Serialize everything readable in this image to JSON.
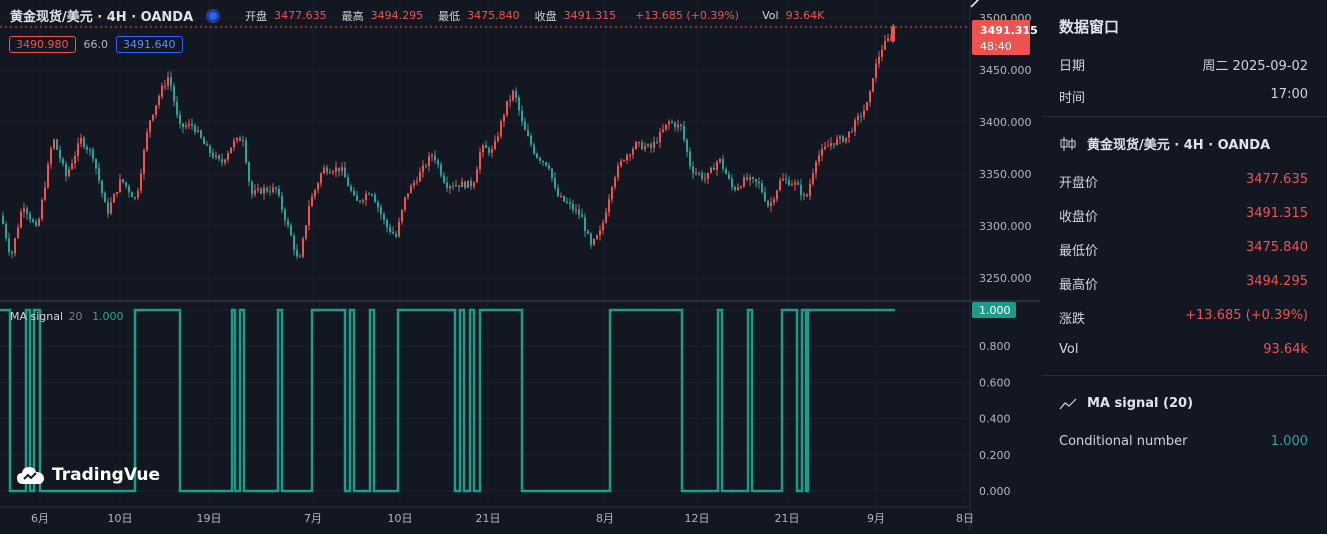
{
  "legend": {
    "symbol": "黄金现货/美元 · 4H · OANDA",
    "open_label": "开盘",
    "open": "3477.635",
    "high_label": "最高",
    "high": "3494.295",
    "low_label": "最低",
    "low": "3475.840",
    "close_label": "收盘",
    "close": "3491.315",
    "change": "+13.685 (+0.39%)",
    "vol_label": "Vol",
    "vol": "93.64K"
  },
  "quote": {
    "bid": "3490.980",
    "spread": "66.0",
    "ask": "3491.640"
  },
  "price_badge": {
    "price": "3491.315",
    "countdown": "48:40"
  },
  "price_axis": [
    "3500.000",
    "3450.000",
    "3400.000",
    "3350.000",
    "3300.000",
    "3250.000"
  ],
  "signal_axis": [
    "1.000",
    "0.800",
    "0.600",
    "0.400",
    "0.200",
    "0.000"
  ],
  "signal_badge": "1.000",
  "time_axis": [
    "6月",
    "10日",
    "19日",
    "7月",
    "10日",
    "21日",
    "8月",
    "12日",
    "21日",
    "9月",
    "8日"
  ],
  "ma_legend": {
    "name": "MA signal",
    "period": "20",
    "value": "1.000"
  },
  "logo": "TradingVue",
  "colors": {
    "up": "#ef5350",
    "down": "#26a69a",
    "signal": "#1a9e8a",
    "background": "#131722"
  },
  "panel": {
    "title": "数据窗口",
    "date_label": "日期",
    "date": "周二 2025-09-02",
    "time_label": "时间",
    "time": "17:00",
    "series_title": "黄金现货/美元 · 4H · OANDA",
    "open_label": "开盘价",
    "open": "3477.635",
    "close_label": "收盘价",
    "close": "3491.315",
    "low_label": "最低价",
    "low": "3475.840",
    "high_label": "最高价",
    "high": "3494.295",
    "change_label": "涨跌",
    "change": "+13.685 (+0.39%)",
    "vol_label": "Vol",
    "vol": "93.64k",
    "indicator_title": "MA signal (20)",
    "cond_label": "Conditional number",
    "cond": "1.000"
  },
  "chart_data": {
    "type": "candlestick",
    "symbol": "黄金现货/美元 · 4H · OANDA",
    "ylim": [
      3232,
      3509
    ],
    "price_path": [
      [
        0,
        3310
      ],
      [
        10,
        3270
      ],
      [
        22,
        3322
      ],
      [
        36,
        3295
      ],
      [
        52,
        3385
      ],
      [
        65,
        3348
      ],
      [
        80,
        3383
      ],
      [
        92,
        3368
      ],
      [
        106,
        3312
      ],
      [
        120,
        3345
      ],
      [
        135,
        3325
      ],
      [
        148,
        3400
      ],
      [
        160,
        3430
      ],
      [
        168,
        3445
      ],
      [
        178,
        3395
      ],
      [
        192,
        3397
      ],
      [
        205,
        3375
      ],
      [
        220,
        3360
      ],
      [
        232,
        3380
      ],
      [
        242,
        3385
      ],
      [
        250,
        3330
      ],
      [
        262,
        3335
      ],
      [
        275,
        3335
      ],
      [
        290,
        3290
      ],
      [
        298,
        3262
      ],
      [
        308,
        3320
      ],
      [
        322,
        3355
      ],
      [
        340,
        3355
      ],
      [
        355,
        3322
      ],
      [
        370,
        3335
      ],
      [
        385,
        3300
      ],
      [
        395,
        3290
      ],
      [
        405,
        3330
      ],
      [
        420,
        3352
      ],
      [
        432,
        3370
      ],
      [
        445,
        3340
      ],
      [
        460,
        3340
      ],
      [
        472,
        3340
      ],
      [
        480,
        3375
      ],
      [
        492,
        3372
      ],
      [
        505,
        3415
      ],
      [
        513,
        3430
      ],
      [
        522,
        3395
      ],
      [
        535,
        3368
      ],
      [
        548,
        3358
      ],
      [
        555,
        3330
      ],
      [
        568,
        3320
      ],
      [
        580,
        3310
      ],
      [
        590,
        3280
      ],
      [
        600,
        3295
      ],
      [
        612,
        3345
      ],
      [
        622,
        3365
      ],
      [
        635,
        3378
      ],
      [
        650,
        3375
      ],
      [
        668,
        3400
      ],
      [
        680,
        3395
      ],
      [
        690,
        3355
      ],
      [
        705,
        3345
      ],
      [
        718,
        3365
      ],
      [
        732,
        3335
      ],
      [
        745,
        3345
      ],
      [
        758,
        3340
      ],
      [
        768,
        3318
      ],
      [
        780,
        3345
      ],
      [
        795,
        3340
      ],
      [
        805,
        3325
      ],
      [
        815,
        3365
      ],
      [
        830,
        3380
      ],
      [
        845,
        3385
      ],
      [
        855,
        3400
      ],
      [
        862,
        3410
      ],
      [
        868,
        3420
      ],
      [
        872,
        3445
      ],
      [
        880,
        3470
      ],
      [
        888,
        3480
      ],
      [
        895,
        3491
      ]
    ],
    "signal_segments": [
      [
        0,
        1
      ],
      [
        10,
        0
      ],
      [
        26,
        1
      ],
      [
        30,
        0
      ],
      [
        34,
        1
      ],
      [
        40,
        0
      ],
      [
        135,
        1
      ],
      [
        180,
        0
      ],
      [
        232,
        1
      ],
      [
        235,
        0
      ],
      [
        240,
        1
      ],
      [
        244,
        0
      ],
      [
        278,
        1
      ],
      [
        282,
        0
      ],
      [
        312,
        1
      ],
      [
        345,
        0
      ],
      [
        350,
        1
      ],
      [
        354,
        0
      ],
      [
        370,
        1
      ],
      [
        374,
        0
      ],
      [
        398,
        1
      ],
      [
        455,
        0
      ],
      [
        460,
        1
      ],
      [
        464,
        0
      ],
      [
        470,
        1
      ],
      [
        474,
        0
      ],
      [
        480,
        1
      ],
      [
        522,
        0
      ],
      [
        610,
        1
      ],
      [
        682,
        0
      ],
      [
        718,
        1
      ],
      [
        722,
        0
      ],
      [
        748,
        1
      ],
      [
        752,
        0
      ],
      [
        782,
        1
      ],
      [
        797,
        0
      ],
      [
        802,
        1
      ],
      [
        806,
        0
      ],
      [
        808,
        1
      ],
      [
        895,
        1
      ]
    ],
    "signal_ylim": [
      0,
      1
    ],
    "last_close": 3491.315
  }
}
